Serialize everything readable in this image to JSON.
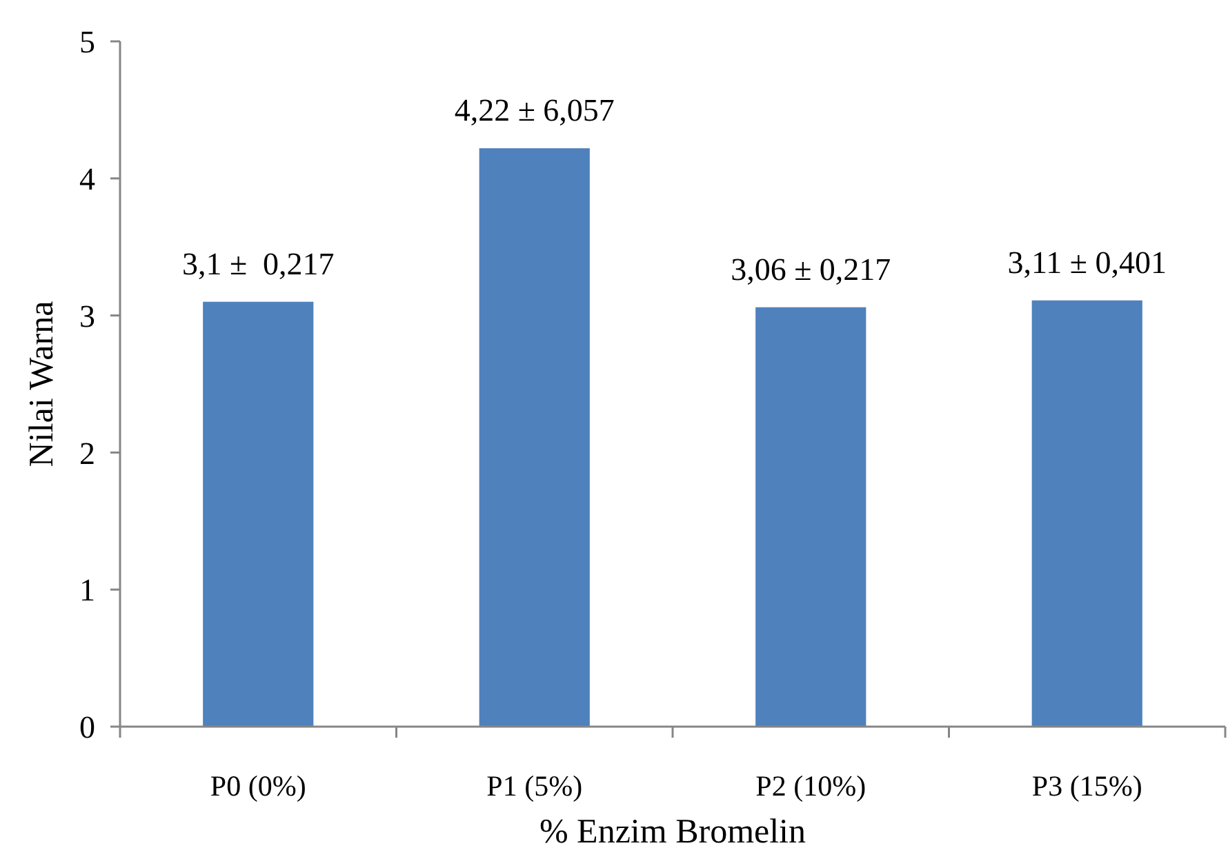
{
  "chart_data": {
    "type": "bar",
    "xlabel": "% Enzim Bromelin",
    "ylabel": "Nilai Warna",
    "categories": [
      "P0 (0%)",
      "P1 (5%)",
      "P2 (10%)",
      "P3 (15%)"
    ],
    "values": [
      3.1,
      4.22,
      3.06,
      3.11
    ],
    "value_labels": [
      "3,1 ±  0,217",
      "4,22 ± 6,057",
      "3,06 ± 0,217",
      "3,11 ± 0,401"
    ],
    "color": "#4f81bd",
    "ylim": [
      0,
      5
    ],
    "yticks": [
      0,
      1,
      2,
      3,
      4,
      5
    ],
    "grid": false
  }
}
